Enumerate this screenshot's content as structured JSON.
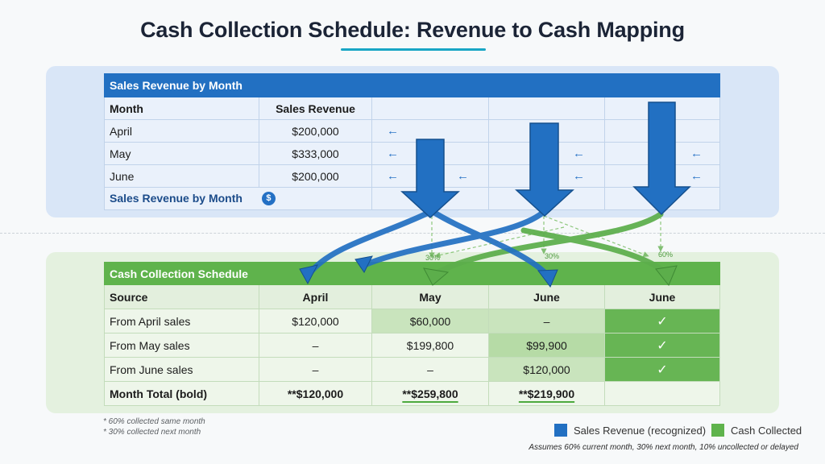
{
  "title": "Cash Collection Schedule: Revenue to Cash Mapping",
  "colors": {
    "accent": "#19a6c5",
    "revenue_blue": "#2270c2",
    "cash_green": "#5fb34c"
  },
  "revenue_table": {
    "header": "Sales Revenue by Month",
    "col_month": "Month",
    "col_revenue": "Sales Revenue",
    "rows": [
      {
        "month": "April",
        "revenue": "$200,000"
      },
      {
        "month": "May",
        "revenue": "$333,000"
      },
      {
        "month": "June",
        "revenue": "$200,000"
      }
    ],
    "arrow_glyph": "←",
    "footer": "Sales Revenue by Month",
    "footer_icon": "dollar-circle-icon",
    "footer_icon_glyph": "$"
  },
  "flow_labels": {
    "pct_a": "30%",
    "pct_b": "30%",
    "pct_c": "60%"
  },
  "cash_table": {
    "header": "Cash Collection Schedule",
    "col_source": "Source",
    "col_april": "April",
    "col_may": "May",
    "col_june": "June",
    "col_june2": "June",
    "rows": [
      {
        "source": "From April sales",
        "april": "$120,000",
        "may": "$60,000",
        "june": "–"
      },
      {
        "source": "From May sales",
        "april": "–",
        "may": "$199,800",
        "june": "$99,900"
      },
      {
        "source": "From June sales",
        "april": "–",
        "may": "–",
        "june": "$120,000"
      }
    ],
    "check_glyph": "✓",
    "total": {
      "label": "Month Total (bold)",
      "april": "**$120,000",
      "may": "**$259,800",
      "june": "**$219,900"
    }
  },
  "notes": {
    "note1": "* 60% collected same month",
    "note2": "* 30% collected next month"
  },
  "legend": {
    "revenue": "Sales Revenue (recognized)",
    "cash": "Cash Collected"
  },
  "footnote": "Assumes 60% current month, 30% next month, 10% uncollected or delayed"
}
